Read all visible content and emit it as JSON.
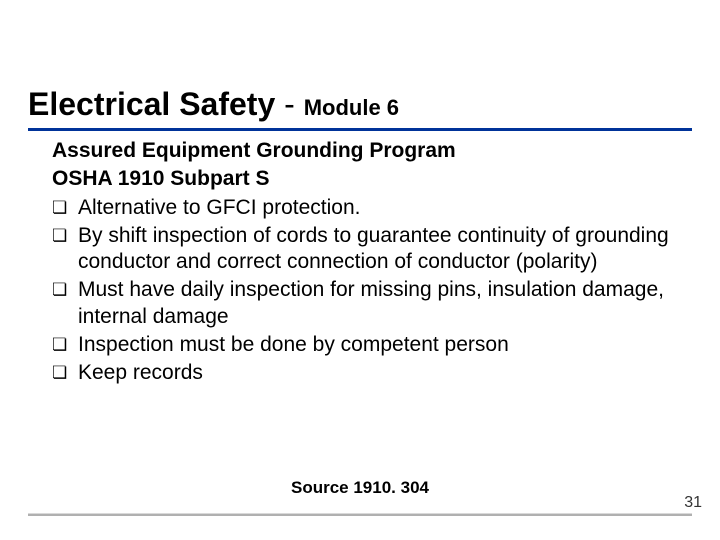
{
  "title": {
    "main": "Electrical Safety",
    "separator": " - ",
    "module": "Module 6"
  },
  "heading1": "Assured Equipment Grounding Program",
  "heading2": "OSHA 1910 Subpart S",
  "bullets": [
    "Alternative to GFCI protection.",
    "By shift inspection of cords to guarantee continuity of grounding conductor and correct connection of conductor (polarity)",
    "Must have daily inspection for missing pins, insulation damage, internal damage",
    "Inspection must be done by competent person",
    "Keep records"
  ],
  "source": "Source 1910. 304",
  "page_number": "31",
  "colors": {
    "underline": "#003399",
    "footer_line": "#b0b0b0",
    "text": "#000000",
    "background": "#ffffff"
  },
  "fonts": {
    "title_main_size": 32,
    "title_module_size": 22,
    "body_size": 21,
    "source_size": 17,
    "pagenum_size": 16
  }
}
